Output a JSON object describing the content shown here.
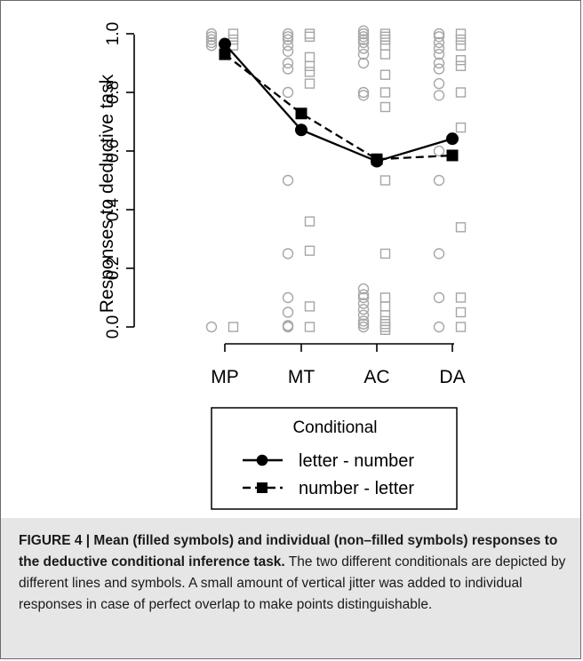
{
  "chart_data": {
    "type": "scatter",
    "categories": [
      "MP",
      "MT",
      "AC",
      "DA"
    ],
    "ylabel": "Responses to deductive task",
    "ylim": [
      0.0,
      1.0
    ],
    "yticks": [
      "0.0",
      "0.2",
      "0.4",
      "0.6",
      "0.8",
      "1.0"
    ],
    "legend": {
      "title": "Conditional",
      "position": "bottom-center"
    },
    "series": [
      {
        "name": "letter - number",
        "style": "solid",
        "marker": "filled-circle",
        "values": [
          0.965,
          0.672,
          0.565,
          0.642
        ]
      },
      {
        "name": "number - letter",
        "style": "dashed",
        "marker": "filled-square",
        "values": [
          0.93,
          0.728,
          0.572,
          0.585
        ]
      }
    ],
    "individual": {
      "circle": [
        [
          0.0,
          0.96,
          0.97,
          0.98,
          0.99,
          1.0
        ],
        [
          0.0,
          0.005,
          0.05,
          0.1,
          0.25,
          0.5,
          0.8,
          0.88,
          0.9,
          0.94,
          0.96,
          0.98,
          0.99,
          1.0
        ],
        [
          0.0,
          0.01,
          0.02,
          0.04,
          0.06,
          0.08,
          0.1,
          0.11,
          0.13,
          0.79,
          0.8,
          0.9,
          0.93,
          0.95,
          0.97,
          0.98,
          0.99,
          1.0,
          1.01
        ],
        [
          0.0,
          0.1,
          0.25,
          0.5,
          0.6,
          0.79,
          0.83,
          0.88,
          0.9,
          0.93,
          0.95,
          0.97,
          0.99,
          1.0
        ]
      ],
      "square": [
        [
          0.0,
          0.96,
          0.98,
          1.0
        ],
        [
          0.0,
          0.07,
          0.26,
          0.36,
          0.83,
          0.87,
          0.89,
          0.92,
          0.99,
          1.0
        ],
        [
          -0.01,
          0.0,
          0.01,
          0.02,
          0.04,
          0.07,
          0.1,
          0.25,
          0.5,
          0.75,
          0.8,
          0.86,
          0.93,
          0.96,
          0.98,
          0.99,
          1.0
        ],
        [
          0.0,
          0.05,
          0.1,
          0.34,
          0.68,
          0.8,
          0.89,
          0.91,
          0.96,
          0.98,
          1.0
        ]
      ]
    }
  },
  "caption": {
    "title": "FIGURE 4 | Mean (filled symbols) and individual (non–filled symbols) responses to the deductive conditional inference task.",
    "body": " The two different conditionals are depicted by different lines and symbols. A small amount of vertical jitter was added to individual responses in case of perfect overlap to make points distinguishable."
  },
  "colors": {
    "individual": "#a6a6a6",
    "mean": "#000000",
    "caption_bg": "#e6e6e7"
  }
}
